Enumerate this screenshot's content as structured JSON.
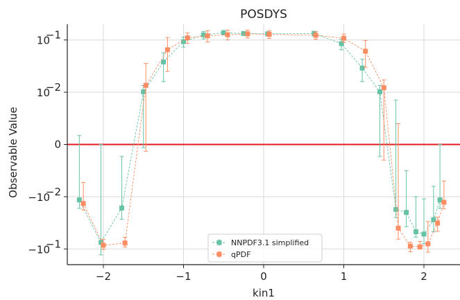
{
  "chart_data": {
    "type": "scatter",
    "title": "POSDYS",
    "xlabel": "kin1",
    "ylabel": "Observable Value",
    "xlim": [
      -2.45,
      2.45
    ],
    "yscale": "symlog",
    "linthresh": 0.01,
    "ylim": [
      -0.2,
      0.2
    ],
    "grid": true,
    "zero_line_color": "#e31a1c",
    "x_ticks": [
      {
        "value": -2,
        "label": "−2"
      },
      {
        "value": -1,
        "label": "−1"
      },
      {
        "value": 0,
        "label": "0"
      },
      {
        "value": 1,
        "label": "1"
      },
      {
        "value": 2,
        "label": "2"
      }
    ],
    "y_ticks": [
      {
        "value": 0.1,
        "base": "10",
        "exp": "−1",
        "sign": ""
      },
      {
        "value": 0.01,
        "base": "10",
        "exp": "−2",
        "sign": ""
      },
      {
        "value": 0,
        "label": "0"
      },
      {
        "value": -0.01,
        "base": "10",
        "exp": "−2",
        "sign": "−"
      },
      {
        "value": -0.1,
        "base": "10",
        "exp": "−1",
        "sign": "−"
      }
    ],
    "legend_position": "bottom-center",
    "series": [
      {
        "name": "NNPDF3.1 simplified",
        "color": "#66c2a5",
        "x": [
          -2.3,
          -2.03,
          -1.77,
          -1.5,
          -1.25,
          -1.0,
          -0.75,
          -0.5,
          -0.25,
          0.05,
          0.63,
          0.97,
          1.23,
          1.45,
          1.65,
          1.78,
          1.9,
          2.0,
          2.12,
          2.2
        ],
        "y": [
          -0.0115,
          -0.075,
          -0.0165,
          0.0102,
          0.038,
          0.093,
          0.125,
          0.138,
          0.133,
          0.131,
          0.133,
          0.085,
          0.029,
          0.0102,
          -0.0175,
          -0.02,
          -0.047,
          -0.052,
          -0.0275,
          -0.0115
        ],
        "yerr_low": [
          0.0052,
          0.055,
          0.0105,
          0.0108,
          0.022,
          0.02,
          0.02,
          0.013,
          0.011,
          0.011,
          0.015,
          0.02,
          0.013,
          0.0125,
          0.0075,
          0.0175,
          0.0125,
          0.027,
          0.019,
          0.0052
        ],
        "yerr_high": [
          0.0132,
          0.075,
          0.0142,
          0.0032,
          0.019,
          0.021,
          0.02,
          0.012,
          0.01,
          0.01,
          0.014,
          0.019,
          0.014,
          0.0032,
          0.026,
          0.015,
          0.037,
          0.041,
          0.0195,
          0.0115
        ]
      },
      {
        "name": "qPDF",
        "color": "#fc8d62",
        "x": [
          -2.25,
          -2.0,
          -1.73,
          -1.47,
          -1.2,
          -0.95,
          -0.7,
          -0.45,
          -0.2,
          0.07,
          0.65,
          1.0,
          1.27,
          1.5,
          1.68,
          1.83,
          1.95,
          2.05,
          2.17,
          2.25
        ],
        "y": [
          -0.0135,
          -0.085,
          -0.077,
          0.0135,
          0.065,
          0.11,
          0.12,
          0.126,
          0.131,
          0.128,
          0.123,
          0.108,
          0.061,
          0.0122,
          -0.04,
          -0.088,
          -0.091,
          -0.08,
          -0.032,
          -0.0128
        ],
        "yerr_low": [
          0.0045,
          0.017,
          0.015,
          0.0148,
          0.04,
          0.024,
          0.029,
          0.026,
          0.022,
          0.021,
          0.02,
          0.018,
          0.031,
          0.0152,
          0.025,
          0.025,
          0.01,
          0.035,
          0.014,
          0.0042
        ],
        "yerr_high": [
          0.0062,
          0.019,
          0.017,
          0.022,
          0.046,
          0.026,
          0.03,
          0.028,
          0.023,
          0.022,
          0.021,
          0.022,
          0.037,
          0.005,
          0.044,
          0.014,
          0.019,
          0.05,
          0.0075,
          0.0058
        ]
      }
    ]
  }
}
